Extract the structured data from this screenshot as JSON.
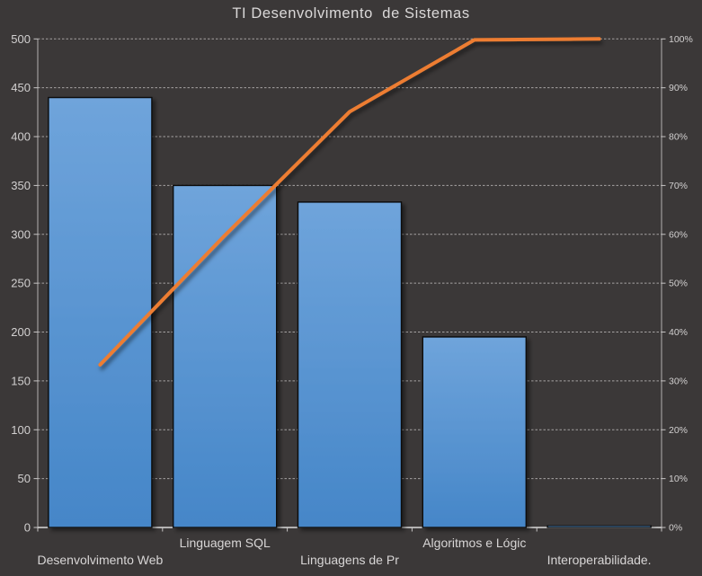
{
  "chart_data": {
    "type": "pareto",
    "title": "TI Desenvolvimento  de Sistemas",
    "categories": [
      "Desenvolvimento Web",
      "Linguagem SQL",
      "Linguagens de Pr",
      "Algoritmos e Lógic",
      "Interoperabilidade."
    ],
    "series": [
      {
        "name": "bars",
        "type": "bar",
        "axis": "left",
        "values": [
          440,
          350,
          333,
          195,
          2
        ]
      },
      {
        "name": "cumulative_percent_line",
        "type": "line",
        "axis": "right",
        "values": [
          33.3,
          59.8,
          85.1,
          99.8,
          100
        ]
      }
    ],
    "left_axis": {
      "min": 0,
      "max": 500,
      "step": 50,
      "tick_labels": [
        "500",
        "450",
        "400",
        "350",
        "300",
        "250",
        "200",
        "150",
        "100",
        "50",
        "0"
      ]
    },
    "right_axis": {
      "min": 0,
      "max": 100,
      "step": 10,
      "tick_labels": [
        "100%",
        "90%",
        "80%",
        "70%",
        "60%",
        "50%",
        "40%",
        "30%",
        "20%",
        "10%",
        "0%"
      ]
    },
    "grid": true,
    "legend": false,
    "colors": {
      "background": "#3b3838",
      "bar_gradient_top": "#6fa4db",
      "bar_gradient_bottom": "#4586c8",
      "bar_border": "#0a0a0a",
      "line": "#ed7d31",
      "gridline": "#cfcccc",
      "axis_line": "#c8c6c6",
      "baseline": "#d9d9d9",
      "text": "#d2d0d0",
      "title_text": "#dbd9d9"
    }
  }
}
